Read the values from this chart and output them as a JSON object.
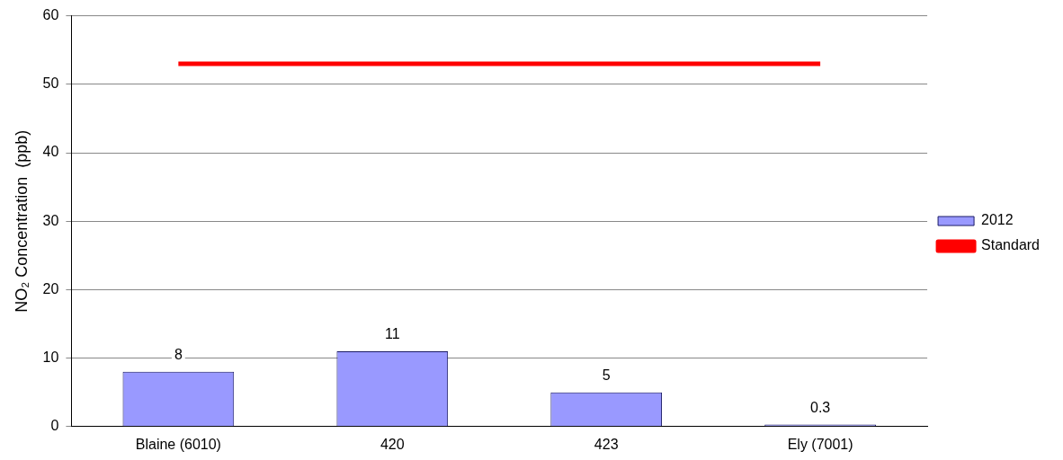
{
  "chart_data": {
    "type": "bar",
    "ylabel": "NO₂ Concentration  (ppb)",
    "categories": [
      "Blaine (6010)",
      "420",
      "423",
      "Ely (7001)"
    ],
    "series": [
      {
        "name": "2012",
        "color": "#9999ff",
        "values": [
          8,
          11,
          5,
          0.3
        ],
        "value_labels": [
          "8",
          "11",
          "5",
          "0.3"
        ]
      },
      {
        "name": "Standard",
        "type": "line",
        "color": "#ff0000",
        "values": [
          53,
          53,
          53,
          53
        ]
      }
    ],
    "ylim": [
      0,
      60
    ],
    "yticks": [
      0,
      10,
      20,
      30,
      40,
      50,
      60
    ],
    "grid": "y",
    "legend": "right",
    "marker": "none"
  }
}
